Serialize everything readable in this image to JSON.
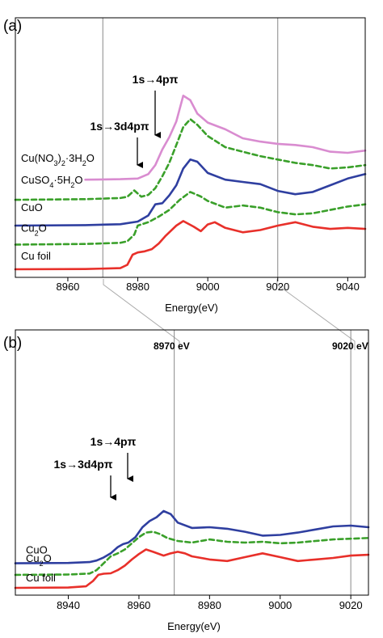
{
  "chart_data": [
    {
      "type": "line",
      "panel_label": "(a)",
      "xlabel": "Energy(eV)",
      "ylabel": "",
      "xlim": [
        8945,
        9045
      ],
      "xticks": [
        8960,
        8980,
        9000,
        9020,
        9040
      ],
      "reference_lines_x": [
        8970,
        9020
      ],
      "annotations": [
        {
          "text": "1s→4pπ",
          "x": 8985
        },
        {
          "text": "1s→3d4pπ",
          "x": 8978
        }
      ],
      "series": [
        {
          "name": "Cu(NO3)2·3H2O",
          "label_main": "Cu(NO",
          "sub1": "3",
          "label_mid": ")",
          "sub2": "2",
          "label_tail": "·3H",
          "sub3": "2",
          "label_end": "O",
          "color": "#d98cd0",
          "dashed": false,
          "offset": 4.0,
          "x": [
            8965,
            8975,
            8980,
            8983,
            8985,
            8987,
            8989,
            8991,
            8993,
            8995,
            8997,
            9000,
            9005,
            9010,
            9015,
            9020,
            9025,
            9030,
            9035,
            9040,
            9045
          ],
          "y": [
            0.0,
            0.02,
            0.05,
            0.25,
            0.65,
            1.35,
            1.9,
            2.6,
            3.75,
            3.55,
            2.95,
            2.55,
            2.25,
            1.85,
            1.7,
            1.6,
            1.55,
            1.45,
            1.25,
            1.2,
            1.3
          ]
        },
        {
          "name": "CuSO4·5H2O",
          "label_main": "CuSO",
          "sub1": "4",
          "label_mid": "·5H",
          "sub2": "2",
          "label_tail": "O",
          "color": "#3aa02a",
          "dashed": true,
          "offset": 3.1,
          "x": [
            8945,
            8965,
            8975,
            8977,
            8979,
            8981,
            8983,
            8985,
            8987,
            8989,
            8991,
            8993,
            8995,
            8997,
            9000,
            9005,
            9010,
            9015,
            9020,
            9025,
            9030,
            9035,
            9040,
            9045
          ],
          "y": [
            0.0,
            0.03,
            0.08,
            0.14,
            0.42,
            0.14,
            0.22,
            0.52,
            1.05,
            1.65,
            2.45,
            3.25,
            3.6,
            3.35,
            2.85,
            2.35,
            2.15,
            1.95,
            1.8,
            1.65,
            1.55,
            1.4,
            1.45,
            1.55
          ]
        },
        {
          "name": "CuO",
          "label_main": "CuO",
          "color": "#2f3fa0",
          "dashed": false,
          "offset": 1.95,
          "x": [
            8945,
            8965,
            8975,
            8980,
            8983,
            8985,
            8987,
            8989,
            8991,
            8993,
            8995,
            8997,
            9000,
            9005,
            9010,
            9015,
            9020,
            9025,
            9030,
            9035,
            9040,
            9045
          ],
          "y": [
            0.0,
            0.02,
            0.06,
            0.18,
            0.45,
            0.95,
            1.0,
            1.35,
            1.8,
            2.55,
            2.95,
            2.85,
            2.35,
            2.05,
            1.95,
            1.85,
            1.55,
            1.4,
            1.5,
            1.8,
            2.1,
            2.3
          ]
        },
        {
          "name": "Cu2O",
          "label_main": "Cu",
          "sub1": "2",
          "label_mid": "O",
          "color": "#3aa02a",
          "dashed": true,
          "offset": 1.1,
          "x": [
            8945,
            8965,
            8975,
            8977,
            8979,
            8980,
            8983,
            8986,
            8989,
            8992,
            8995,
            8998,
            9000,
            9005,
            9010,
            9015,
            9020,
            9025,
            9030,
            9035,
            9040,
            9045
          ],
          "y": [
            0.0,
            0.03,
            0.08,
            0.15,
            0.45,
            0.85,
            1.0,
            1.25,
            1.55,
            2.0,
            2.35,
            2.15,
            1.95,
            1.65,
            1.75,
            1.65,
            1.45,
            1.35,
            1.4,
            1.55,
            1.7,
            1.8
          ]
        },
        {
          "name": "Cu foil",
          "label_main": "Cu foil",
          "color": "#e8302a",
          "dashed": false,
          "offset": 0.0,
          "x": [
            8945,
            8965,
            8975,
            8977,
            8978.5,
            8980,
            8982,
            8984,
            8986,
            8988,
            8991,
            8993,
            8996,
            8998,
            9000,
            9002,
            9005,
            9010,
            9015,
            9020,
            9025,
            9030,
            9035,
            9040,
            9045
          ],
          "y": [
            0.0,
            0.01,
            0.05,
            0.2,
            0.65,
            0.75,
            0.8,
            0.9,
            1.15,
            1.5,
            1.95,
            2.15,
            1.9,
            1.7,
            2.0,
            2.1,
            1.85,
            1.65,
            1.75,
            1.95,
            2.1,
            1.9,
            1.8,
            1.85,
            1.8
          ]
        }
      ]
    },
    {
      "type": "line",
      "panel_label": "(b)",
      "xlabel": "Energy(eV)",
      "ylabel": "",
      "xlim": [
        8925,
        9025
      ],
      "xticks": [
        8940,
        8960,
        8980,
        9000,
        9020
      ],
      "reference_lines_x": [
        8970,
        9020
      ],
      "reference_labels": [
        "8970 eV",
        "9020 eV"
      ],
      "annotations": [
        {
          "text": "1s→4pπ",
          "x": 8955.5
        },
        {
          "text": "1s→3d4pπ",
          "x": 8951
        }
      ],
      "series": [
        {
          "name": "CuO",
          "label_main": "CuO",
          "color": "#2f3fa0",
          "dashed": false,
          "offset": 1.6,
          "x": [
            8925,
            8940,
            8946,
            8948,
            8950,
            8952,
            8954,
            8955.5,
            8957,
            8959,
            8961,
            8963,
            8965,
            8967,
            8969,
            8971,
            8975,
            8980,
            8985,
            8990,
            8995,
            9000,
            9005,
            9010,
            9015,
            9020,
            9025
          ],
          "y": [
            0.0,
            0.02,
            0.08,
            0.18,
            0.38,
            0.65,
            1.05,
            1.25,
            1.35,
            1.7,
            2.35,
            2.75,
            3.0,
            3.4,
            3.2,
            2.65,
            2.3,
            2.35,
            2.25,
            2.05,
            1.8,
            1.85,
            2.0,
            2.2,
            2.4,
            2.45,
            2.35
          ]
        },
        {
          "name": "Cu2O",
          "label_main": "Cu",
          "sub1": "2",
          "label_mid": "O",
          "color": "#3aa02a",
          "dashed": true,
          "offset": 0.85,
          "x": [
            8925,
            8940,
            8946,
            8948,
            8950,
            8952,
            8954,
            8956,
            8958,
            8960,
            8962,
            8964,
            8966,
            8968,
            8971,
            8975,
            8980,
            8985,
            8990,
            8995,
            9000,
            9005,
            9010,
            9015,
            9020,
            9025
          ],
          "y": [
            0.0,
            0.02,
            0.08,
            0.3,
            0.75,
            1.2,
            1.4,
            1.65,
            2.05,
            2.45,
            2.75,
            2.8,
            2.65,
            2.4,
            2.2,
            2.1,
            2.3,
            2.15,
            2.1,
            2.15,
            2.05,
            2.1,
            2.2,
            2.3,
            2.35,
            2.4
          ]
        },
        {
          "name": "Cu foil",
          "label_main": "Cu foil",
          "color": "#e8302a",
          "dashed": false,
          "offset": 0.0,
          "x": [
            8925,
            8940,
            8945,
            8947,
            8948.5,
            8950,
            8952,
            8954,
            8956,
            8958,
            8960,
            8962,
            8964,
            8967,
            8969,
            8971,
            8973,
            8975,
            8980,
            8985,
            8990,
            8995,
            9000,
            9005,
            9010,
            9015,
            9020,
            9025
          ],
          "y": [
            0.0,
            0.02,
            0.1,
            0.45,
            0.85,
            0.92,
            0.95,
            1.15,
            1.45,
            1.85,
            2.2,
            2.5,
            2.35,
            2.1,
            2.25,
            2.35,
            2.25,
            2.05,
            1.85,
            1.75,
            2.0,
            2.25,
            2.0,
            1.75,
            1.85,
            1.95,
            2.1,
            2.15
          ]
        }
      ]
    }
  ]
}
